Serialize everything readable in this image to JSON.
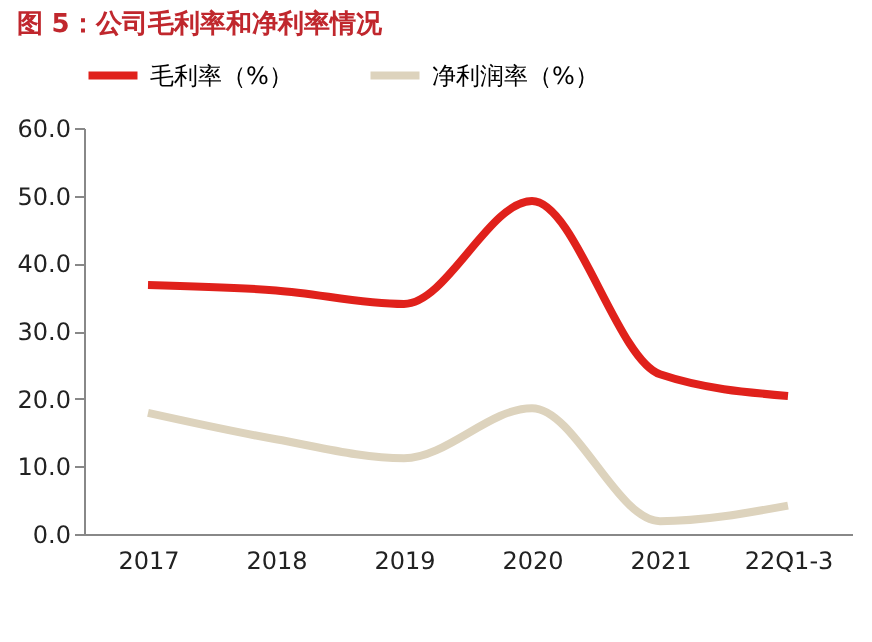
{
  "chart_data": {
    "type": "line",
    "title": "图 5：公司毛利率和净利率情况",
    "categories": [
      "2017",
      "2018",
      "2019",
      "2020",
      "2021",
      "22Q1-3"
    ],
    "series": [
      {
        "name": "毛利率（%）",
        "color": "#e0211b",
        "values": [
          36.8,
          36.0,
          34.0,
          49.2,
          23.6,
          20.4
        ]
      },
      {
        "name": "净利润率（%）",
        "color": "#ddd3bd",
        "values": [
          17.9,
          14.0,
          11.2,
          18.6,
          1.9,
          4.2
        ]
      }
    ],
    "ylim": [
      0,
      60
    ],
    "yticks": [
      {
        "value": 0,
        "label": "0.0"
      },
      {
        "value": 10,
        "label": "10.0"
      },
      {
        "value": 20,
        "label": "20.0"
      },
      {
        "value": 30,
        "label": "30.0"
      },
      {
        "value": 40,
        "label": "40.0"
      },
      {
        "value": 50,
        "label": "50.0"
      },
      {
        "value": 60,
        "label": "60.0"
      }
    ],
    "grid": false,
    "legend": "top",
    "marker": "none",
    "line_style": "solid"
  }
}
